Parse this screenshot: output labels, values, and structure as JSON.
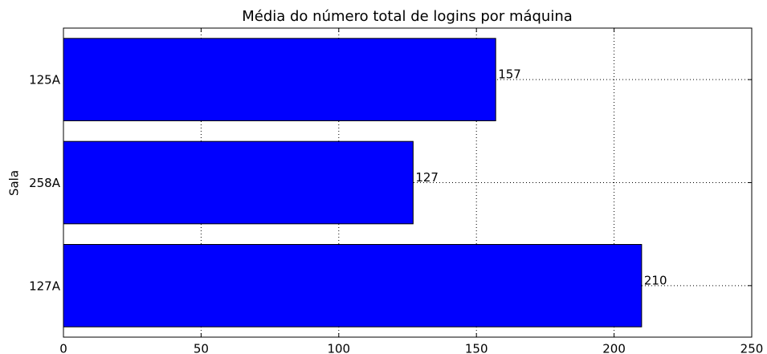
{
  "chart_data": {
    "type": "barh",
    "title": "Média do número total de logins por máquina",
    "ylabel": "Sala",
    "categories": [
      "125A",
      "258A",
      "127A"
    ],
    "values": [
      157,
      127,
      210
    ],
    "color": "#0000ff",
    "xlim": [
      0,
      250
    ],
    "xticks": [
      0,
      50,
      100,
      150,
      200,
      250
    ],
    "grid": true
  }
}
